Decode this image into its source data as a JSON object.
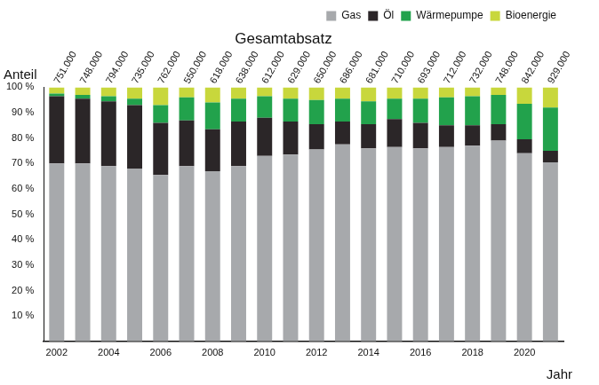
{
  "chart_data": {
    "type": "bar",
    "stacked": true,
    "title": "Gesamtabsatz",
    "x_label": "Jahr",
    "y_label": "Anteil",
    "categories": [
      "2002",
      null,
      "2004",
      null,
      "2006",
      null,
      "2008",
      null,
      "2010",
      null,
      "2012",
      null,
      "2014",
      null,
      "2016",
      null,
      "2018",
      null,
      "2020",
      null
    ],
    "series": [
      {
        "name": "Gas",
        "color": "#a7a9ac",
        "values": [
          70,
          70,
          69,
          68,
          65.5,
          69,
          67,
          69,
          73,
          73.5,
          75.5,
          77.5,
          76,
          76.5,
          76,
          76.5,
          77,
          79,
          74,
          70.5
        ]
      },
      {
        "name": "Öl",
        "color": "#2b2628",
        "values": [
          26.5,
          25.5,
          25.5,
          25,
          20.5,
          18,
          16.5,
          17.5,
          15,
          13,
          10,
          9,
          9.5,
          11,
          10,
          8.5,
          8,
          6.5,
          5.5,
          4.5
        ]
      },
      {
        "name": "Wärmepumpe",
        "color": "#22a24c",
        "values": [
          1,
          1.5,
          2,
          2.5,
          7,
          9,
          10.5,
          9,
          8.5,
          9,
          9.5,
          9,
          9,
          8,
          9.5,
          11,
          11.5,
          11.5,
          14,
          17
        ]
      },
      {
        "name": "Bioenergie",
        "color": "#c8d73c",
        "values": [
          2.5,
          3,
          3.5,
          4.5,
          7,
          4,
          6,
          4.5,
          3.5,
          4.5,
          5,
          4.5,
          5.5,
          4.5,
          4.5,
          4,
          3.5,
          3,
          6.5,
          8
        ]
      }
    ],
    "totals": {
      "values": [
        751000,
        748000,
        794000,
        735000,
        762000,
        550000,
        618000,
        638000,
        612000,
        629000,
        650000,
        686000,
        681000,
        710000,
        693000,
        712000,
        732000,
        748000,
        842000,
        929000
      ],
      "labels": [
        "751.000",
        "748.000",
        "794.000",
        "735.000",
        "762.000",
        "550.000",
        "618.000",
        "638.000",
        "612.000",
        "629.000",
        "650.000",
        "686.000",
        "681.000",
        "710.000",
        "693.000",
        "712.000",
        "732.000",
        "748.000",
        "842.000",
        "929.000"
      ]
    },
    "ylim": [
      0,
      100
    ],
    "yticks": [
      {
        "value": 10,
        "label": "10 %"
      },
      {
        "value": 20,
        "label": "20 %"
      },
      {
        "value": 30,
        "label": "30 %"
      },
      {
        "value": 40,
        "label": "40 %"
      },
      {
        "value": 50,
        "label": "50 %"
      },
      {
        "value": 60,
        "label": "60 %"
      },
      {
        "value": 70,
        "label": "70 %"
      },
      {
        "value": 80,
        "label": "80 %"
      },
      {
        "value": 90,
        "label": "90 %"
      },
      {
        "value": 100,
        "label": "100 %"
      }
    ],
    "grid": false,
    "legend": "top right"
  }
}
